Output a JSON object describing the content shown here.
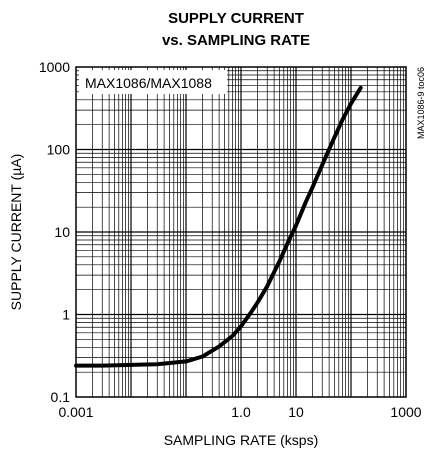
{
  "chart_data": {
    "type": "line",
    "title": [
      "SUPPLY CURRENT",
      "vs. SAMPLING RATE"
    ],
    "xlabel": "SAMPLING RATE (ksps)",
    "ylabel": "SUPPLY CURRENT (µA)",
    "x_scale": "log",
    "y_scale": "log",
    "xlim": [
      0.001,
      1000
    ],
    "ylim": [
      0.1,
      1000
    ],
    "x_ticks": [
      {
        "value": 0.001,
        "label": "0.001"
      },
      {
        "value": 1,
        "label": "1.0"
      },
      {
        "value": 10,
        "label": "10"
      },
      {
        "value": 1000,
        "label": "1000"
      }
    ],
    "y_ticks": [
      {
        "value": 0.1,
        "label": "0.1"
      },
      {
        "value": 1,
        "label": "1"
      },
      {
        "value": 10,
        "label": "10"
      },
      {
        "value": 100,
        "label": "100"
      },
      {
        "value": 1000,
        "label": "1000"
      }
    ],
    "grid": true,
    "annotation": "MAX1086/MAX1088",
    "side_label": "MAX1086-9 toc06",
    "series": [
      {
        "x": [
          0.001,
          0.003,
          0.01,
          0.03,
          0.1,
          0.2,
          0.4,
          0.7,
          1,
          1.5,
          2,
          3,
          5,
          7,
          10,
          15,
          20,
          30,
          50,
          70,
          100,
          150
        ],
        "y": [
          0.24,
          0.24,
          0.245,
          0.25,
          0.27,
          0.31,
          0.41,
          0.55,
          0.72,
          1.05,
          1.4,
          2.2,
          4.4,
          7.3,
          12,
          23,
          35,
          65,
          140,
          230,
          360,
          560
        ]
      }
    ]
  }
}
